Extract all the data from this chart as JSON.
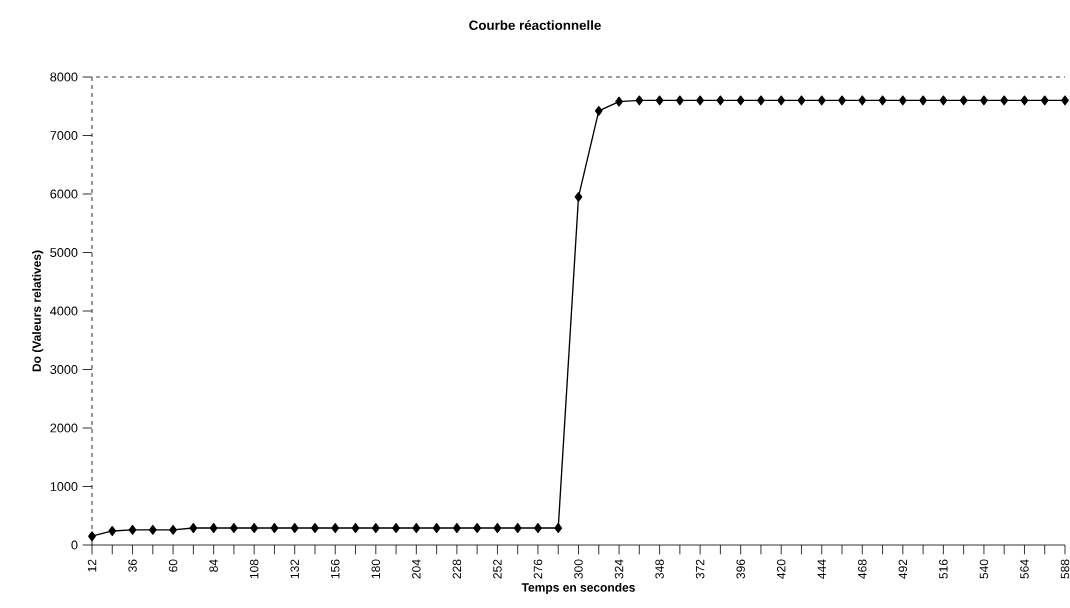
{
  "chart_data": {
    "type": "line",
    "title": "Courbe réactionnelle",
    "xlabel": "Temps en secondes",
    "ylabel": "Do (Valeurs relatives)",
    "x": [
      12,
      24,
      36,
      48,
      60,
      72,
      84,
      96,
      108,
      120,
      132,
      144,
      156,
      168,
      180,
      192,
      204,
      216,
      228,
      240,
      252,
      264,
      276,
      288,
      300,
      312,
      324,
      336,
      348,
      360,
      372,
      384,
      396,
      408,
      420,
      432,
      444,
      456,
      468,
      480,
      492,
      504,
      516,
      528,
      540,
      552,
      564,
      576,
      588
    ],
    "series": [
      {
        "color": "#000000",
        "values": [
          150,
          240,
          260,
          260,
          260,
          290,
          290,
          290,
          290,
          290,
          290,
          290,
          290,
          290,
          290,
          290,
          290,
          290,
          290,
          290,
          290,
          290,
          290,
          290,
          5950,
          7420,
          7580,
          7600,
          7600,
          7600,
          7600,
          7600,
          7600,
          7600,
          7600,
          7600,
          7600,
          7600,
          7600,
          7600,
          7600,
          7600,
          7600,
          7600,
          7600,
          7600,
          7600,
          7600,
          7600
        ]
      }
    ],
    "xlim": [
      12,
      588
    ],
    "ylim": [
      0,
      8000
    ],
    "xticks": [
      12,
      {
        "value": 24,
        "label": null
      },
      36,
      {
        "value": 48,
        "label": null
      },
      60,
      {
        "value": 72,
        "label": null
      },
      84,
      {
        "value": 96,
        "label": null
      },
      108,
      {
        "value": 120,
        "label": null
      },
      132,
      {
        "value": 144,
        "label": null
      },
      156,
      {
        "value": 168,
        "label": null
      },
      180,
      {
        "value": 192,
        "label": null
      },
      204,
      {
        "value": 216,
        "label": null
      },
      228,
      {
        "value": 240,
        "label": null
      },
      252,
      {
        "value": 264,
        "label": null
      },
      276,
      {
        "value": 288,
        "label": null
      },
      300,
      {
        "value": 312,
        "label": null
      },
      324,
      {
        "value": 336,
        "label": null
      },
      348,
      {
        "value": 360,
        "label": null
      },
      372,
      {
        "value": 384,
        "label": null
      },
      396,
      {
        "value": 408,
        "label": null
      },
      420,
      {
        "value": 432,
        "label": null
      },
      444,
      {
        "value": 456,
        "label": null
      },
      468,
      {
        "value": 480,
        "label": null
      },
      492,
      {
        "value": 504,
        "label": null
      },
      516,
      {
        "value": 528,
        "label": null
      },
      540,
      {
        "value": 552,
        "label": null
      },
      564,
      {
        "value": 576,
        "label": null
      },
      588
    ],
    "yticks": [
      0,
      1000,
      2000,
      3000,
      4000,
      5000,
      6000,
      7000,
      8000
    ],
    "grid": false,
    "legend": false,
    "marker": "diamond",
    "line_style": "solid"
  }
}
